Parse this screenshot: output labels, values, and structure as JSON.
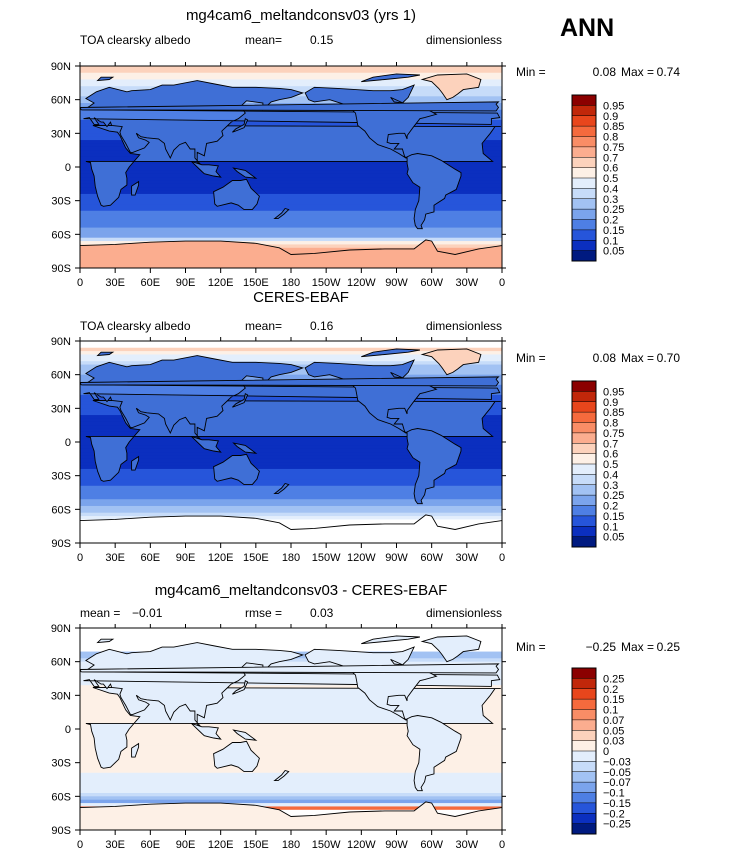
{
  "season": "ANN",
  "colors": {
    "land": "#3f6fd6",
    "coast": "#000000"
  },
  "chart_data": [
    {
      "type": "heatmap",
      "title": "mg4cam6_meltandconsv03 (yrs 1)",
      "variable": "TOA clearsky albedo",
      "units": "dimensionless",
      "stat_left": {
        "label": "mean=",
        "value": "0.15"
      },
      "min": {
        "label": "Min =",
        "value": "0.08"
      },
      "max": {
        "label": "Max =",
        "value": "0.74"
      },
      "xticks": [
        "0",
        "30E",
        "60E",
        "90E",
        "120E",
        "150E",
        "180",
        "150W",
        "120W",
        "90W",
        "60W",
        "30W",
        "0"
      ],
      "yticks": [
        "90N",
        "60N",
        "30N",
        "0",
        "30S",
        "60S",
        "90S"
      ],
      "xlim": [
        0,
        360
      ],
      "ylim": [
        -90,
        90
      ],
      "colorbar": {
        "levels": [
          "0.95",
          "0.9",
          "0.85",
          "0.8",
          "0.75",
          "0.7",
          "0.6",
          "0.5",
          "0.4",
          "0.3",
          "0.25",
          "0.2",
          "0.15",
          "0.1",
          "0.05"
        ],
        "colors": [
          "#8b0000",
          "#c1270a",
          "#e8461c",
          "#f56a3d",
          "#f98d66",
          "#fbad8f",
          "#fcd2bc",
          "#fdf0e6",
          "#e3eefc",
          "#c7dcf9",
          "#a2c2f3",
          "#7ba4ec",
          "#4e7fe4",
          "#2655da",
          "#0b2fbf",
          "#001a80"
        ]
      },
      "zonal_values": {
        "lat": [
          -90,
          -78,
          -72,
          -68,
          -62,
          -55,
          -45,
          -35,
          -20,
          0,
          20,
          35,
          45,
          55,
          62,
          70,
          80,
          90
        ],
        "value": [
          0.72,
          0.72,
          0.72,
          0.6,
          0.22,
          0.2,
          0.18,
          0.13,
          0.09,
          0.09,
          0.09,
          0.12,
          0.17,
          0.22,
          0.28,
          0.35,
          0.58,
          0.62
        ]
      }
    },
    {
      "type": "heatmap",
      "title": "CERES-EBAF",
      "variable": "TOA clearsky albedo",
      "units": "dimensionless",
      "stat_left": {
        "label": "mean=",
        "value": "0.16"
      },
      "min": {
        "label": "Min =",
        "value": "0.08"
      },
      "max": {
        "label": "Max =",
        "value": "0.70"
      },
      "xticks": [
        "0",
        "30E",
        "60E",
        "90E",
        "120E",
        "150E",
        "180",
        "150W",
        "120W",
        "90W",
        "60W",
        "30W",
        "0"
      ],
      "yticks": [
        "90N",
        "60N",
        "30N",
        "0",
        "30S",
        "60S",
        "90S"
      ],
      "xlim": [
        0,
        360
      ],
      "ylim": [
        -90,
        90
      ],
      "colorbar": {
        "levels": [
          "0.95",
          "0.9",
          "0.85",
          "0.8",
          "0.75",
          "0.7",
          "0.6",
          "0.5",
          "0.4",
          "0.3",
          "0.25",
          "0.2",
          "0.15",
          "0.1",
          "0.05"
        ],
        "colors": [
          "#8b0000",
          "#c1270a",
          "#e8461c",
          "#f56a3d",
          "#f98d66",
          "#fbad8f",
          "#fcd2bc",
          "#fdf0e6",
          "#e3eefc",
          "#c7dcf9",
          "#a2c2f3",
          "#7ba4ec",
          "#4e7fe4",
          "#2655da",
          "#0b2fbf",
          "#001a80"
        ]
      },
      "zonal_values": {
        "lat": [
          -90,
          -78,
          -72,
          -68,
          -62,
          -55,
          -45,
          -35,
          -20,
          0,
          20,
          35,
          45,
          55,
          62,
          70,
          80,
          90
        ],
        "value": [
          null,
          null,
          null,
          0.45,
          0.3,
          0.22,
          0.18,
          0.13,
          0.09,
          0.09,
          0.09,
          0.12,
          0.17,
          0.22,
          0.26,
          0.3,
          0.6,
          null
        ]
      }
    },
    {
      "type": "heatmap",
      "title": "mg4cam6_meltandconsv03 - CERES-EBAF",
      "variable": "",
      "units": "dimensionless",
      "stat_left": {
        "label": "mean =",
        "value": "−0.01"
      },
      "stat_mid": {
        "label": "rmse =",
        "value": "0.03"
      },
      "min": {
        "label": "Min =",
        "value": "−0.25"
      },
      "max": {
        "label": "Max =",
        "value": "0.25"
      },
      "xticks": [
        "0",
        "30E",
        "60E",
        "90E",
        "120E",
        "150E",
        "180",
        "150W",
        "120W",
        "90W",
        "60W",
        "30W",
        "0"
      ],
      "yticks": [
        "90N",
        "60N",
        "30N",
        "0",
        "30S",
        "60S",
        "90S"
      ],
      "xlim": [
        0,
        360
      ],
      "ylim": [
        -90,
        90
      ],
      "colorbar": {
        "levels": [
          "0.25",
          "0.2",
          "0.15",
          "0.1",
          "0.07",
          "0.05",
          "0.03",
          "0",
          "−0.03",
          "−0.05",
          "−0.07",
          "−0.1",
          "−0.15",
          "−0.2",
          "−0.25"
        ],
        "colors": [
          "#8b0000",
          "#c1270a",
          "#e8461c",
          "#f56a3d",
          "#f98d66",
          "#fbad8f",
          "#fcd2bc",
          "#fdf0e6",
          "#e3eefc",
          "#c7dcf9",
          "#a2c2f3",
          "#7ba4ec",
          "#4e7fe4",
          "#2655da",
          "#0b2fbf",
          "#001a80"
        ]
      },
      "zonal_values": {
        "lat": [
          -90,
          -72,
          -70,
          -66,
          -62,
          -55,
          -40,
          0,
          40,
          58,
          62,
          68,
          72,
          90
        ],
        "value": [
          null,
          null,
          0.12,
          -0.08,
          -0.06,
          -0.02,
          0.0,
          0.0,
          0.0,
          -0.02,
          -0.05,
          -0.06,
          null,
          null
        ]
      }
    }
  ]
}
